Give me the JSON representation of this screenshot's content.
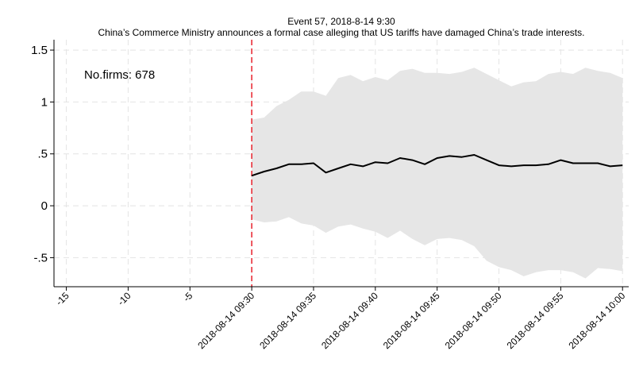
{
  "chart_data": {
    "type": "line",
    "title": "Event 57, 2018-8-14 9:30",
    "subtitle": "China’s Commerce Ministry announces a formal case alleging that US tariffs have damaged China’s trade interests.",
    "annotation": "No.firms: 678",
    "xlabel": "",
    "ylabel": "",
    "xlim": [
      -16,
      30.5
    ],
    "ylim": [
      -0.78,
      1.6
    ],
    "yticks": [
      {
        "value": 1.5,
        "label": "1.5"
      },
      {
        "value": 1,
        "label": "1"
      },
      {
        "value": 0.5,
        "label": ".5"
      },
      {
        "value": 0,
        "label": "0"
      },
      {
        "value": -0.5,
        "label": "-.5"
      }
    ],
    "xticks": [
      {
        "value": -15,
        "label": "-15"
      },
      {
        "value": -10,
        "label": "-10"
      },
      {
        "value": -5,
        "label": "-5"
      },
      {
        "value": 0,
        "label": "2018-08-14 09:30"
      },
      {
        "value": 5,
        "label": "2018-08-14 09:35"
      },
      {
        "value": 10,
        "label": "2018-08-14 09:40"
      },
      {
        "value": 15,
        "label": "2018-08-14 09:45"
      },
      {
        "value": 20,
        "label": "2018-08-14 09:50"
      },
      {
        "value": 25,
        "label": "2018-08-14 09:55"
      },
      {
        "value": 30,
        "label": "2018-08-14 10:00"
      }
    ],
    "event_x": 0,
    "grid": true,
    "colors": {
      "line": "#000000",
      "band": "#e6e6e6",
      "event": "#e8202a",
      "grid": "#e4e4e4"
    },
    "x": [
      0,
      1,
      2,
      3,
      4,
      5,
      6,
      7,
      8,
      9,
      10,
      11,
      12,
      13,
      14,
      15,
      16,
      17,
      18,
      19,
      20,
      21,
      22,
      23,
      24,
      25,
      26,
      27,
      28,
      29,
      30
    ],
    "series": [
      {
        "values": [
          0.29,
          0.33,
          0.36,
          0.4,
          0.4,
          0.41,
          0.32,
          0.36,
          0.4,
          0.38,
          0.42,
          0.41,
          0.46,
          0.44,
          0.4,
          0.46,
          0.48,
          0.47,
          0.49,
          0.44,
          0.39,
          0.38,
          0.39,
          0.39,
          0.4,
          0.44,
          0.41,
          0.41,
          0.41,
          0.38,
          0.39
        ]
      }
    ],
    "band_upper": [
      0.83,
      0.85,
      0.96,
      1.02,
      1.1,
      1.1,
      1.06,
      1.23,
      1.26,
      1.2,
      1.24,
      1.21,
      1.3,
      1.32,
      1.28,
      1.28,
      1.27,
      1.29,
      1.33,
      1.27,
      1.21,
      1.15,
      1.19,
      1.2,
      1.27,
      1.29,
      1.27,
      1.33,
      1.3,
      1.28,
      1.23
    ],
    "band_lower": [
      -0.13,
      -0.16,
      -0.15,
      -0.11,
      -0.17,
      -0.19,
      -0.26,
      -0.2,
      -0.18,
      -0.22,
      -0.25,
      -0.31,
      -0.24,
      -0.32,
      -0.38,
      -0.32,
      -0.31,
      -0.33,
      -0.39,
      -0.53,
      -0.59,
      -0.62,
      -0.68,
      -0.64,
      -0.62,
      -0.62,
      -0.64,
      -0.7,
      -0.6,
      -0.61,
      -0.63
    ]
  }
}
